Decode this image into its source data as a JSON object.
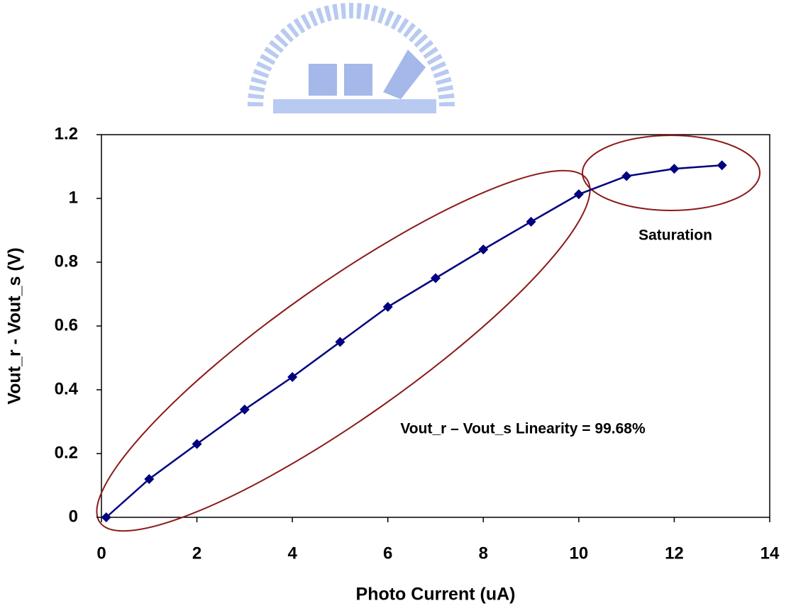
{
  "chart_data": {
    "type": "line",
    "x_label": "Photo Current (uA)",
    "y_label": "Vout_r - Vout_s (V)",
    "x": [
      0.1,
      1,
      2,
      3,
      4,
      5,
      6,
      7,
      8,
      9,
      10,
      11,
      12,
      13
    ],
    "series": [
      {
        "color": "#000080",
        "values": [
          0,
          0.12,
          0.23,
          0.338,
          0.44,
          0.55,
          0.66,
          0.75,
          0.84,
          0.927,
          1.013,
          1.07,
          1.093,
          1.104
        ]
      }
    ],
    "xlim": [
      0,
      14
    ],
    "xticks": [
      0,
      2,
      4,
      6,
      8,
      10,
      12,
      14
    ],
    "ylim": [
      0,
      1.2
    ],
    "yticks": [
      0,
      0.2,
      0.4,
      0.6,
      0.8,
      1,
      1.2
    ],
    "annotations": [
      "Saturation",
      "Vout_r – Vout_s Linearity = 99.68%"
    ]
  }
}
